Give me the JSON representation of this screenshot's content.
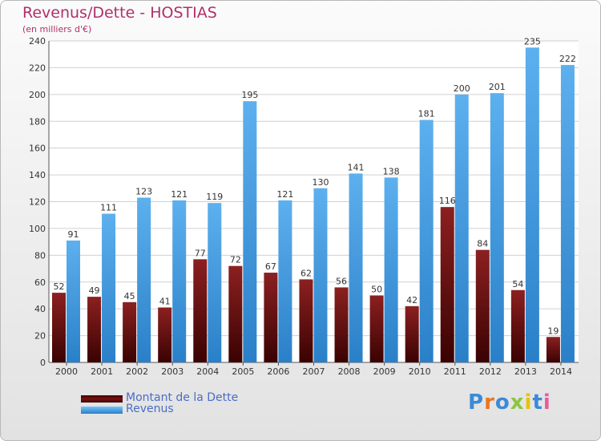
{
  "chart_data": {
    "type": "bar",
    "title": "Revenus/Dette - HOSTIAS",
    "subtitle": "(en milliers d'€)",
    "categories": [
      "2000",
      "2001",
      "2002",
      "2003",
      "2004",
      "2005",
      "2006",
      "2007",
      "2008",
      "2009",
      "2010",
      "2011",
      "2012",
      "2013",
      "2014"
    ],
    "series": [
      {
        "name": "Montant de la Dette",
        "color": "#7a1010",
        "values": [
          52,
          49,
          45,
          41,
          77,
          72,
          67,
          62,
          56,
          50,
          42,
          116,
          84,
          54,
          19
        ]
      },
      {
        "name": "Revenus",
        "color": "#4aa3e6",
        "values": [
          91,
          111,
          123,
          121,
          119,
          195,
          121,
          130,
          141,
          138,
          181,
          200,
          201,
          235,
          222
        ]
      }
    ],
    "ylim": [
      0,
      240
    ],
    "yticks": [
      0,
      20,
      40,
      60,
      80,
      100,
      120,
      140,
      160,
      180,
      200,
      220,
      240
    ],
    "grid": true,
    "legend_position": "bottom-left",
    "data_labels": true
  },
  "colors": {
    "title": "#b0306a",
    "legend_text": "#4b6cc7",
    "grid": "#d0d0d0",
    "axis_text": "#333333"
  },
  "brand": {
    "text": "Proxiti",
    "letter_colors": [
      "#3c8ad8",
      "#e87722",
      "#3c8ad8",
      "#8cc63f",
      "#e8c300",
      "#3c8ad8",
      "#e85c9a"
    ]
  }
}
